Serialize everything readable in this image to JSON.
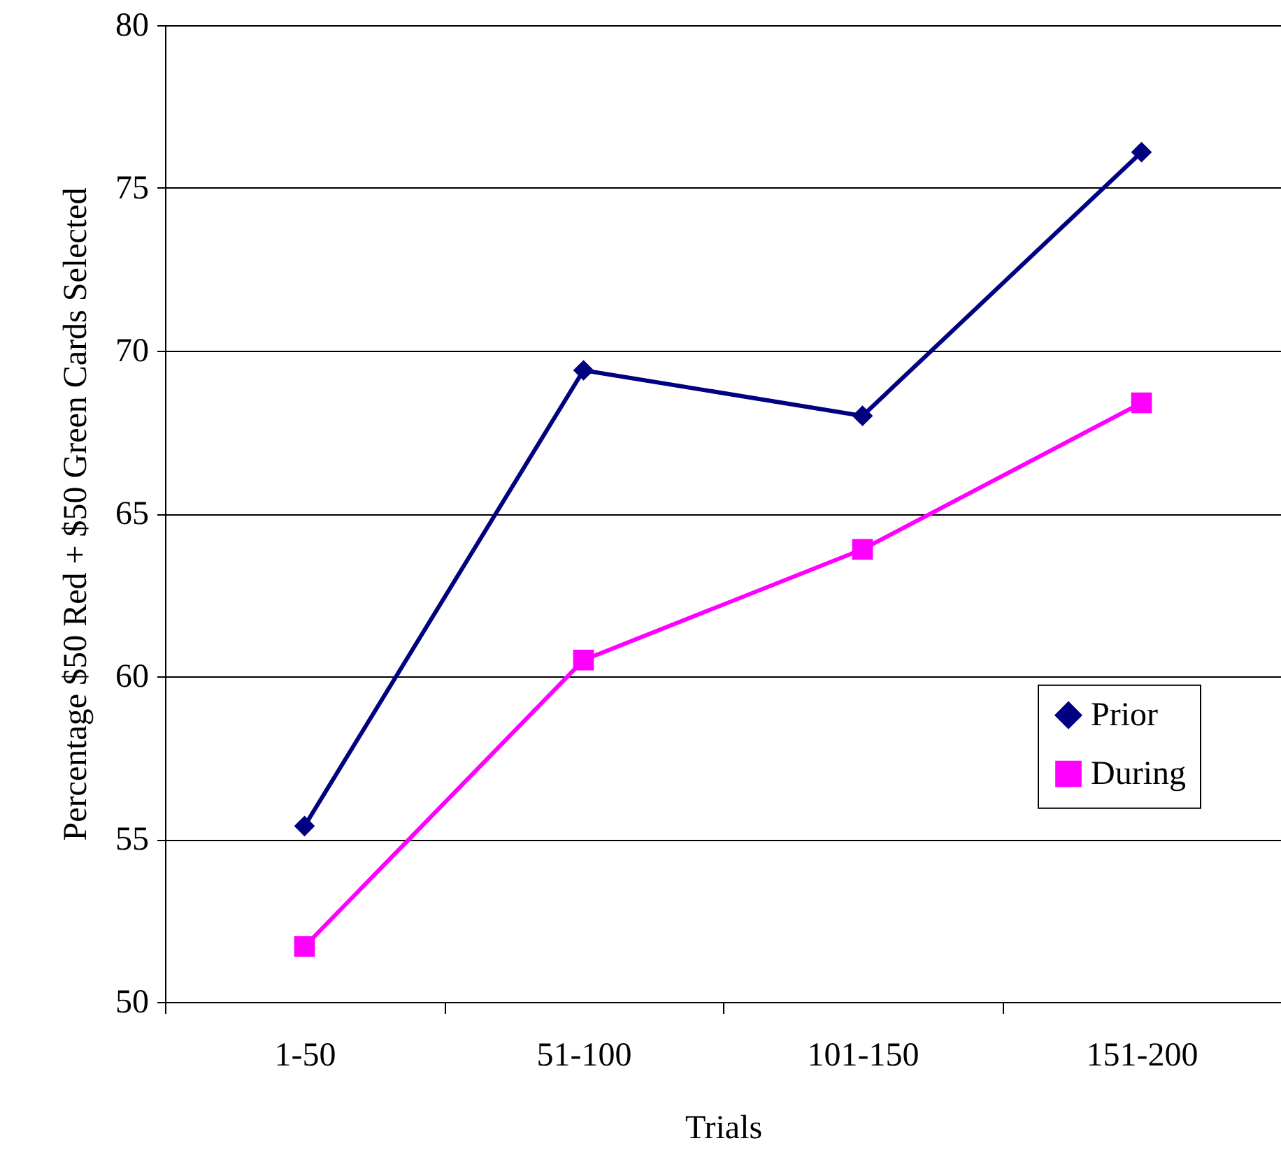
{
  "chart_data": {
    "type": "line",
    "xlabel": "Trials",
    "ylabel": "Percentage $50 Red + $50 Green Cards Selected",
    "categories": [
      "1-50",
      "51-100",
      "101-150",
      "151-200"
    ],
    "series": [
      {
        "name": "Prior",
        "color": "#000080",
        "marker": "diamond",
        "values": [
          55.4,
          69.4,
          68.0,
          76.1
        ]
      },
      {
        "name": "During",
        "color": "#ff00ff",
        "marker": "square",
        "values": [
          51.7,
          60.5,
          63.9,
          68.4
        ]
      }
    ],
    "ylim": [
      50,
      80
    ],
    "yticks": [
      50,
      55,
      60,
      65,
      70,
      75,
      80
    ],
    "grid": "y",
    "legend": "right",
    "line_style": "solid"
  }
}
